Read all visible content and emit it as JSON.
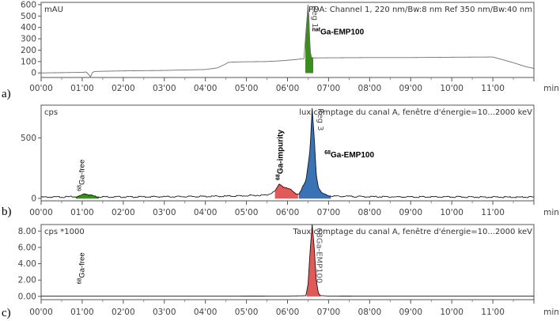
{
  "chart_data": [
    {
      "panel_label": "a)",
      "type": "line",
      "y_unit_label": "mAU",
      "detector_caption": "PDA: Channel 1, 220 nm/Bw:8 nm Ref 350 nm/Bw:40 nm",
      "x_unit": "min",
      "xlim": [
        0,
        12
      ],
      "x_ticks": [
        "00'00",
        "01'00",
        "02'00",
        "03'00",
        "04'00",
        "05'00",
        "06'00",
        "07'00",
        "08'00",
        "09'00",
        "10'00",
        "11'00"
      ],
      "ylim": [
        -40,
        620
      ],
      "y_ticks": [
        0,
        100,
        200,
        300,
        400,
        500,
        600
      ],
      "trace_color": "#6e6e6e",
      "trace": {
        "x": [
          0.0,
          1.0,
          1.1,
          1.15,
          1.2,
          1.25,
          1.3,
          1.4,
          2.0,
          3.0,
          4.0,
          4.3,
          4.5,
          4.55,
          4.7,
          5.0,
          5.5,
          5.9,
          6.2,
          6.4,
          6.5,
          6.52,
          6.55,
          6.58,
          6.62,
          6.7,
          7.0,
          8.0,
          9.0,
          10.0,
          11.0,
          11.2,
          11.5,
          11.8,
          12.0
        ],
        "y": [
          0,
          5,
          8,
          -10,
          -35,
          5,
          12,
          14,
          18,
          22,
          30,
          45,
          80,
          92,
          96,
          98,
          100,
          108,
          118,
          125,
          600,
          500,
          200,
          140,
          132,
          132,
          133,
          135,
          135,
          138,
          140,
          120,
          90,
          55,
          40
        ]
      },
      "peaks": [
        {
          "name": "natGa-EMP100",
          "tag": "Reg 1",
          "color": "#3d8c1f",
          "x_start": 6.44,
          "x_end": 6.62
        }
      ],
      "annotations": [
        {
          "sup": "nat",
          "text": "Ga-EMP100",
          "x": 6.6,
          "y": 340
        }
      ]
    },
    {
      "panel_label": "b)",
      "type": "line",
      "y_unit_label": "cps",
      "detector_caption": "lux comptage du canal A, fenêtre d'énergie=10...2000 keV",
      "x_unit": "min",
      "xlim": [
        0,
        12
      ],
      "x_ticks": [
        "00'00",
        "01'00",
        "02'00",
        "03'00",
        "04'00",
        "05'00",
        "06'00",
        "07'00",
        "08'00",
        "09'00",
        "10'00",
        "11'00"
      ],
      "ylim": [
        -20,
        770
      ],
      "y_ticks": [
        0,
        500
      ],
      "trace_color": "#1a1a1a",
      "trace": {
        "x": [
          0.0,
          0.5,
          0.9,
          1.0,
          1.05,
          1.1,
          1.2,
          1.35,
          2.0,
          3.0,
          4.0,
          4.5,
          5.0,
          5.5,
          5.7,
          5.8,
          5.9,
          6.0,
          6.1,
          6.2,
          6.28,
          6.35,
          6.45,
          6.55,
          6.6,
          6.65,
          6.7,
          6.75,
          6.85,
          7.0,
          7.2,
          8.0,
          9.0,
          10.0,
          11.0,
          12.0
        ],
        "y": [
          10,
          12,
          14,
          30,
          40,
          35,
          28,
          14,
          12,
          14,
          16,
          18,
          22,
          28,
          60,
          120,
          95,
          80,
          70,
          40,
          30,
          80,
          150,
          400,
          740,
          500,
          200,
          90,
          40,
          22,
          18,
          14,
          12,
          12,
          11,
          10
        ]
      },
      "peaks": [
        {
          "name": "68Ga-free",
          "tag": "",
          "color": "#3d8c1f",
          "x_start": 0.85,
          "x_end": 1.4
        },
        {
          "name": "68Ga-impurity",
          "tag": "",
          "color": "#e05a5a",
          "x_start": 5.7,
          "x_end": 6.25
        },
        {
          "name": "68Ga-EMP100",
          "tag": "Reg 3",
          "color": "#3a73b5",
          "x_start": 6.28,
          "x_end": 7.05
        }
      ],
      "annotations": [
        {
          "sup": "68",
          "text": "Ga-free",
          "x": 1.05,
          "y": 60,
          "rotated": true
        },
        {
          "sup": "68",
          "text": "Ga-impurity",
          "x": 5.88,
          "y": 150,
          "rotated": true
        },
        {
          "sup": "68",
          "text": "Ga-EMP100",
          "x": 6.9,
          "y": 340
        }
      ]
    },
    {
      "panel_label": "c)",
      "type": "line",
      "y_unit_label": "cps *1000",
      "detector_caption": "Taux comptage du canal A, fenêtre d'énergie=10...2000 keV",
      "x_unit": "min",
      "xlim": [
        0,
        12
      ],
      "x_ticks": [
        "00'00",
        "01'00",
        "02'00",
        "03'00",
        "04'00",
        "05'00",
        "06'00",
        "07'00",
        "08'00",
        "09'00",
        "10'00",
        "11'00"
      ],
      "ylim": [
        -0.4,
        8.8
      ],
      "y_ticks": [
        "0.00",
        "2.00",
        "4.00",
        "6.00",
        "8.00"
      ],
      "trace_color": "#1a1a1a",
      "trace": {
        "x": [
          0.0,
          1.0,
          2.0,
          4.0,
          6.0,
          6.45,
          6.5,
          6.55,
          6.6,
          6.65,
          6.7,
          6.75,
          6.8,
          7.0,
          8.0,
          10.0,
          12.0
        ],
        "y": [
          0.03,
          0.03,
          0.03,
          0.03,
          0.04,
          0.08,
          1.5,
          5.5,
          8.8,
          6.0,
          2.0,
          0.4,
          0.1,
          0.04,
          0.03,
          0.03,
          0.03
        ]
      },
      "peaks": [
        {
          "name": "68Ga-EMP100",
          "tag": "68Ga-EMP100",
          "color": "#e05a5a",
          "x_start": 6.47,
          "x_end": 6.8
        }
      ],
      "annotations": [
        {
          "sup": "68",
          "text": "Ga-free",
          "x": 1.05,
          "y": 1.5,
          "rotated": true
        }
      ]
    }
  ]
}
